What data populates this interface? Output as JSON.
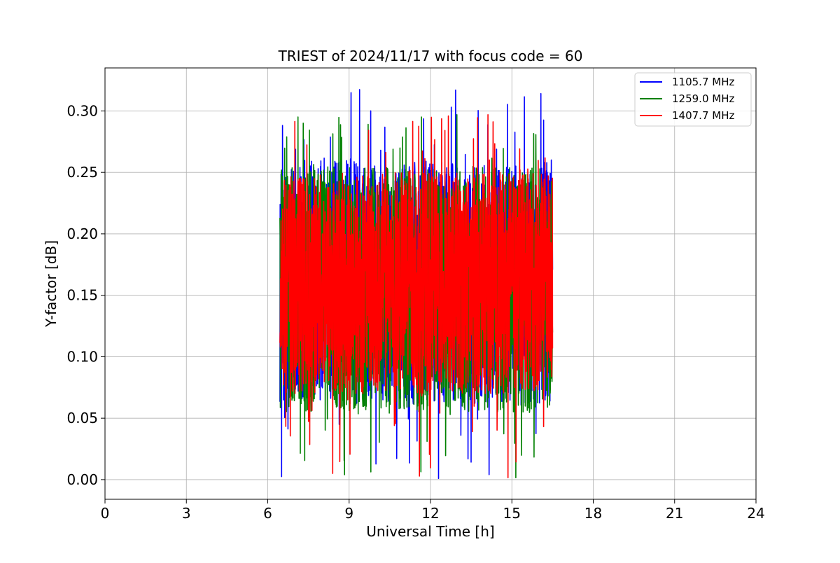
{
  "chart_data": {
    "type": "line",
    "title": "TRIEST of 2024/11/17 with focus code = 60",
    "xlabel": "Universal Time [h]",
    "ylabel": "Y-factor [dB]",
    "xlim": [
      0,
      24
    ],
    "ylim": [
      -0.016,
      0.335
    ],
    "xticks": [
      0,
      3,
      6,
      9,
      12,
      15,
      18,
      21,
      24
    ],
    "xtick_labels": [
      "0",
      "3",
      "6",
      "9",
      "12",
      "15",
      "18",
      "21",
      "24"
    ],
    "yticks": [
      0.0,
      0.05,
      0.1,
      0.15,
      0.2,
      0.25,
      0.3
    ],
    "ytick_labels": [
      "0.00",
      "0.05",
      "0.10",
      "0.15",
      "0.20",
      "0.25",
      "0.30"
    ],
    "grid": true,
    "legend_position": "top-right",
    "time_range": [
      6.45,
      16.5
    ],
    "series": [
      {
        "name": "1105.7 MHz",
        "color": "#0000ff",
        "typical_range": [
          0.06,
          0.26
        ],
        "extremes": {
          "max": 0.318,
          "min": 0.0
        }
      },
      {
        "name": "1259.0 MHz",
        "color": "#008000",
        "typical_range": [
          0.055,
          0.255
        ],
        "extremes": {
          "max": 0.304,
          "min": 0.0
        }
      },
      {
        "name": "1407.7 MHz",
        "color": "#ff0000",
        "typical_range": [
          0.07,
          0.25
        ],
        "extremes": {
          "max": 0.3,
          "min": 0.0
        }
      }
    ]
  }
}
